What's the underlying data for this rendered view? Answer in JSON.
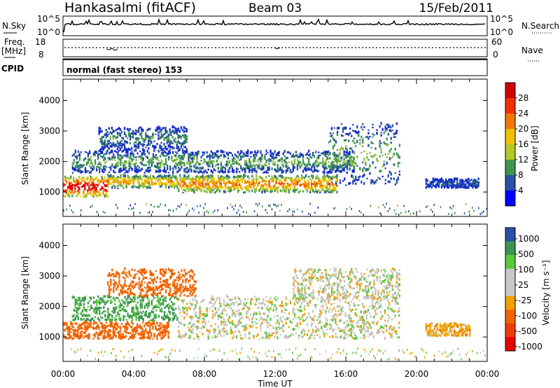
{
  "header": {
    "station": "Hankasalmi (fitACF)",
    "beam": "Beam 03",
    "date": "15/Feb/2011"
  },
  "top_panels": {
    "nsky": {
      "label": "N.Sky",
      "tick_high": "10^5",
      "tick_low": "10^0",
      "right_label": "N.Search",
      "right_tick_high": "10^5",
      "right_tick_low": "10^0"
    },
    "freq": {
      "label_line1": "Freq.",
      "label_line2": "[MHz]",
      "tick_high": "18",
      "tick_low": "8",
      "right_label": "Nave",
      "right_tick_high": "60",
      "right_tick_low": "0"
    },
    "cpid": {
      "label": "CPID",
      "mode_text": "normal (fast stereo) 153"
    }
  },
  "chart_data": [
    {
      "type": "heatmap",
      "name": "power",
      "ylabel": "Slant Range [km]",
      "yticks": [
        1000,
        2000,
        3000,
        4000
      ],
      "ylim": [
        200,
        4700
      ],
      "xlim_hours": [
        0,
        24
      ],
      "colorbar": {
        "label": "Power [dB]",
        "ticks": [
          "28",
          "24",
          "20",
          "16",
          "12",
          "8",
          "4"
        ],
        "colors": [
          "#d40000",
          "#f03000",
          "#f07800",
          "#f0c000",
          "#b4c828",
          "#3c9650",
          "#2a4fa8",
          "#0000ff"
        ]
      },
      "echo_bands": [
        {
          "start": 0.0,
          "end": 2.5,
          "lo": 800,
          "hi": 1450,
          "intensity": 28
        },
        {
          "start": 2.5,
          "end": 6.5,
          "lo": 1100,
          "hi": 1500,
          "intensity": 18
        },
        {
          "start": 6.5,
          "end": 15.5,
          "lo": 950,
          "hi": 1500,
          "intensity": 20
        },
        {
          "start": 0.5,
          "end": 16.5,
          "lo": 1600,
          "hi": 2300,
          "intensity": 10
        },
        {
          "start": 2.0,
          "end": 7.0,
          "lo": 2300,
          "hi": 3100,
          "intensity": 8
        },
        {
          "start": 15.0,
          "end": 19.0,
          "lo": 1200,
          "hi": 3200,
          "intensity": 10
        },
        {
          "start": 20.5,
          "end": 23.5,
          "lo": 1100,
          "hi": 1400,
          "intensity": 6
        }
      ]
    },
    {
      "type": "heatmap",
      "name": "velocity",
      "ylabel": "Slant Range [km]",
      "yticks": [
        1000,
        2000,
        3000,
        4000
      ],
      "ylim": [
        200,
        4700
      ],
      "xlim_hours": [
        0,
        24
      ],
      "xticks": [
        "00:00",
        "04:00",
        "08:00",
        "12:00",
        "16:00",
        "20:00",
        "00:00"
      ],
      "xlabel": "Time UT",
      "colorbar": {
        "label": "Velocity [m s⁻¹]",
        "ticks": [
          "1000",
          "500",
          "100",
          "25",
          "-25",
          "-100",
          "-500",
          "-1000"
        ],
        "colors": [
          "#2a4fa8",
          "#3c9650",
          "#5ac83c",
          "#c8c8c8",
          "#c8c8c8",
          "#f0a000",
          "#f06400",
          "#f03c00",
          "#e80000"
        ]
      },
      "echo_bands": [
        {
          "start": 0.0,
          "end": 6.0,
          "lo": 900,
          "hi": 1450,
          "velocity": -150
        },
        {
          "start": 0.5,
          "end": 6.5,
          "lo": 1500,
          "hi": 2300,
          "velocity": 120
        },
        {
          "start": 2.5,
          "end": 7.5,
          "lo": 2300,
          "hi": 3200,
          "velocity": -400
        },
        {
          "start": 6.5,
          "end": 19.0,
          "lo": 900,
          "hi": 2300,
          "velocity": 0
        },
        {
          "start": 13.0,
          "end": 19.0,
          "lo": 2200,
          "hi": 3200,
          "velocity": 0
        },
        {
          "start": 20.5,
          "end": 23.0,
          "lo": 1000,
          "hi": 1400,
          "velocity": -60
        }
      ]
    }
  ]
}
